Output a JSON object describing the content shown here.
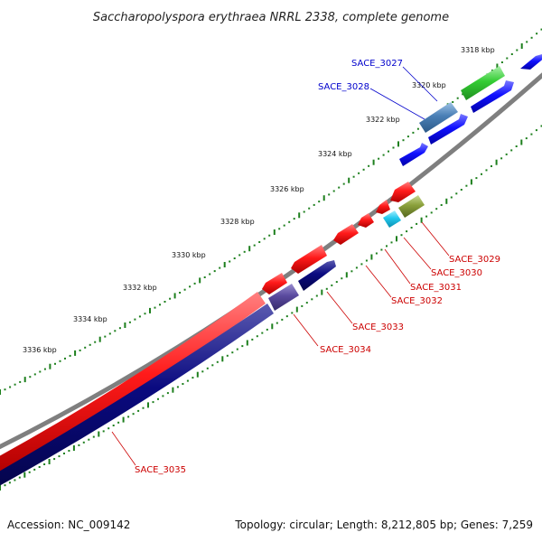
{
  "title": "Saccharopolyspora erythraea NRRL 2338, complete genome",
  "footer": {
    "accession": "Accession: NC_009142",
    "summary": "Topology: circular; Length: 8,212,805 bp; Genes: 7,259"
  },
  "scale_labels": [
    "3318 kbp",
    "3320 kbp",
    "3322 kbp",
    "3324 kbp",
    "3326 kbp",
    "3328 kbp",
    "3330 kbp",
    "3332 kbp",
    "3334 kbp",
    "3336 kbp"
  ],
  "gene_labels": {
    "forward": [
      "SACE_3027",
      "SACE_3028"
    ],
    "reverse": [
      "SACE_3029",
      "SACE_3030",
      "SACE_3031",
      "SACE_3032",
      "SACE_3033",
      "SACE_3034",
      "SACE_3035"
    ]
  },
  "colors": {
    "backbone": "#7f7f7f",
    "forward_label": "#0000cc",
    "reverse_label": "#cc0000",
    "cds_forward": "#0a0aee",
    "cds_reverse": "#ee0a0a",
    "cds_navy": "#0a0a7a",
    "tick_dots": "#1d7f1d",
    "gene_green": "#33cc33",
    "gene_steel": "#4a7fb5",
    "gene_cyan": "#22c8ee",
    "gene_purple": "#5a4a9e",
    "gene_olive": "#8aa03a"
  }
}
